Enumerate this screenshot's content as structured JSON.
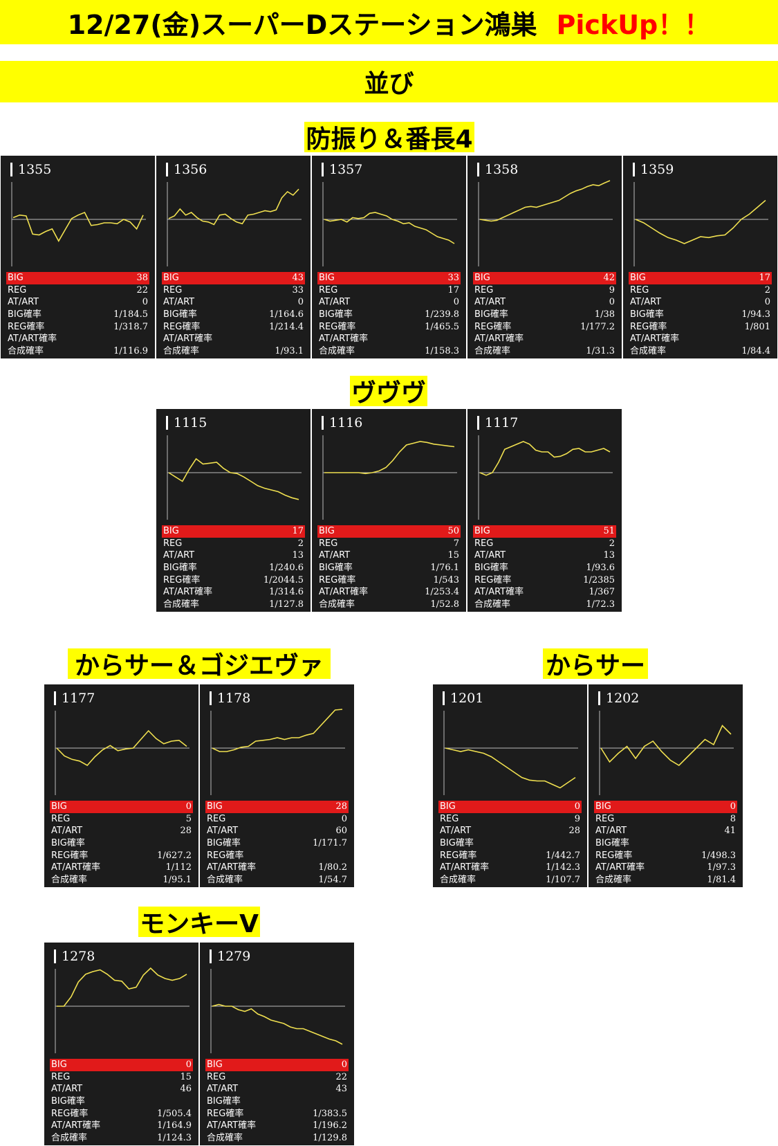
{
  "header": {
    "title": "12/27(金)スーパーDステーション鴻巣",
    "pickup": "PickUp！！",
    "subtitle": "並び"
  },
  "labels": {
    "big": "BIG",
    "reg": "REG",
    "at": "AT/ART",
    "big_rate": "BIG確率",
    "reg_rate": "REG確率",
    "at_rate": "AT/ART確率",
    "total_rate": "合成確率"
  },
  "colors": {
    "banner": "#ffff00",
    "title_accent": "#ff0000",
    "panel": "#1c1c1c",
    "graph_line": "#f0e050",
    "big_row": "#e11a1a"
  },
  "groups": [
    {
      "title": "防振り＆番長4",
      "machines": [
        {
          "number": "1355",
          "big": "38",
          "reg": "22",
          "at": "0",
          "big_rate": "1/184.5",
          "reg_rate": "1/318.7",
          "at_rate": "",
          "total_rate": "1/116.9"
        },
        {
          "number": "1356",
          "big": "43",
          "reg": "33",
          "at": "0",
          "big_rate": "1/164.6",
          "reg_rate": "1/214.4",
          "at_rate": "",
          "total_rate": "1/93.1"
        },
        {
          "number": "1357",
          "big": "33",
          "reg": "17",
          "at": "0",
          "big_rate": "1/239.8",
          "reg_rate": "1/465.5",
          "at_rate": "",
          "total_rate": "1/158.3"
        },
        {
          "number": "1358",
          "big": "42",
          "reg": "9",
          "at": "0",
          "big_rate": "1/38",
          "reg_rate": "1/177.2",
          "at_rate": "",
          "total_rate": "1/31.3"
        },
        {
          "number": "1359",
          "big": "17",
          "reg": "2",
          "at": "0",
          "big_rate": "1/94.3",
          "reg_rate": "1/801",
          "at_rate": "",
          "total_rate": "1/84.4"
        }
      ]
    },
    {
      "title": "ヴヴヴ",
      "machines": [
        {
          "number": "1115",
          "big": "17",
          "reg": "2",
          "at": "13",
          "big_rate": "1/240.6",
          "reg_rate": "1/2044.5",
          "at_rate": "1/314.6",
          "total_rate": "1/127.8"
        },
        {
          "number": "1116",
          "big": "50",
          "reg": "7",
          "at": "15",
          "big_rate": "1/76.1",
          "reg_rate": "1/543",
          "at_rate": "1/253.4",
          "total_rate": "1/52.8"
        },
        {
          "number": "1117",
          "big": "51",
          "reg": "2",
          "at": "13",
          "big_rate": "1/93.6",
          "reg_rate": "1/2385",
          "at_rate": "1/367",
          "total_rate": "1/72.3"
        }
      ]
    },
    {
      "title": "からサー＆ゴジエヴァ",
      "machines": [
        {
          "number": "1177",
          "big": "0",
          "reg": "5",
          "at": "28",
          "big_rate": "",
          "reg_rate": "1/627.2",
          "at_rate": "1/112",
          "total_rate": "1/95.1"
        },
        {
          "number": "1178",
          "big": "28",
          "reg": "0",
          "at": "60",
          "big_rate": "1/171.7",
          "reg_rate": "",
          "at_rate": "1/80.2",
          "total_rate": "1/54.7"
        }
      ]
    },
    {
      "title": "からサー",
      "machines": [
        {
          "number": "1201",
          "big": "0",
          "reg": "9",
          "at": "28",
          "big_rate": "",
          "reg_rate": "1/442.7",
          "at_rate": "1/142.3",
          "total_rate": "1/107.7"
        },
        {
          "number": "1202",
          "big": "0",
          "reg": "8",
          "at": "41",
          "big_rate": "",
          "reg_rate": "1/498.3",
          "at_rate": "1/97.3",
          "total_rate": "1/81.4"
        }
      ]
    },
    {
      "title": "モンキーV",
      "machines": [
        {
          "number": "1278",
          "big": "0",
          "reg": "15",
          "at": "46",
          "big_rate": "",
          "reg_rate": "1/505.4",
          "at_rate": "1/164.9",
          "total_rate": "1/124.3"
        },
        {
          "number": "1279",
          "big": "0",
          "reg": "22",
          "at": "43",
          "big_rate": "",
          "reg_rate": "1/383.5",
          "at_rate": "1/196.2",
          "total_rate": "1/129.8"
        }
      ]
    }
  ],
  "chart_data": [
    {
      "type": "line",
      "title": "1355",
      "values": [
        2,
        5,
        4,
        -17,
        -18,
        -14,
        -11,
        -25,
        -12,
        1,
        5,
        8,
        -7,
        -6,
        -4,
        -4,
        -5,
        0,
        -3,
        -11,
        5
      ]
    },
    {
      "type": "line",
      "title": "1356",
      "values": [
        1,
        4,
        12,
        5,
        8,
        2,
        -2,
        -3,
        -6,
        5,
        6,
        1,
        -3,
        -5,
        5,
        6,
        8,
        10,
        9,
        11,
        25,
        32,
        28,
        35
      ]
    },
    {
      "type": "line",
      "title": "1357",
      "values": [
        0,
        -2,
        -1,
        0,
        -3,
        2,
        1,
        2,
        7,
        8,
        6,
        4,
        0,
        -2,
        -5,
        -4,
        -8,
        -10,
        -12,
        -16,
        -20,
        -22,
        -24,
        -28
      ]
    },
    {
      "type": "line",
      "title": "1358",
      "values": [
        0,
        -1,
        -2,
        -1,
        2,
        5,
        8,
        11,
        14,
        15,
        14,
        16,
        18,
        20,
        22,
        26,
        30,
        33,
        35,
        38,
        40,
        39,
        42,
        45
      ]
    },
    {
      "type": "line",
      "title": "1359",
      "values": [
        0,
        -4,
        -10,
        -16,
        -21,
        -24,
        -28,
        -24,
        -20,
        -21,
        -19,
        -18,
        -10,
        0,
        6,
        14,
        22
      ]
    },
    {
      "type": "line",
      "title": "1115",
      "values": [
        0,
        -5,
        -10,
        4,
        16,
        10,
        11,
        12,
        5,
        0,
        -1,
        -5,
        -10,
        -15,
        -18,
        -20,
        -22,
        -26,
        -29,
        -31
      ]
    },
    {
      "type": "line",
      "title": "1116",
      "values": [
        0,
        0,
        0,
        0,
        0,
        0,
        -1,
        0,
        2,
        6,
        14,
        24,
        32,
        34,
        36,
        35,
        33,
        32,
        31,
        30
      ]
    },
    {
      "type": "line",
      "title": "1117",
      "values": [
        0,
        -3,
        0,
        12,
        27,
        30,
        33,
        36,
        33,
        26,
        24,
        24,
        18,
        19,
        22,
        27,
        28,
        24,
        24,
        26,
        28,
        24
      ]
    },
    {
      "type": "line",
      "title": "1177",
      "values": [
        0,
        -9,
        -13,
        -15,
        -20,
        -10,
        -2,
        3,
        -3,
        -1,
        0,
        10,
        20,
        11,
        5,
        8,
        9,
        2
      ]
    },
    {
      "type": "line",
      "title": "1178",
      "values": [
        0,
        -4,
        -4,
        -2,
        1,
        2,
        8,
        9,
        10,
        12,
        10,
        12,
        12,
        15,
        17,
        26,
        35,
        44,
        54
      ]
    },
    {
      "type": "line",
      "title": "1201",
      "values": [
        0,
        -2,
        -4,
        -2,
        -4,
        -6,
        -10,
        -16,
        -22,
        -28,
        -34,
        -37,
        -38,
        -38,
        -42,
        -46,
        -40,
        -34
      ]
    },
    {
      "type": "line",
      "title": "1202",
      "values": [
        0,
        -16,
        -6,
        2,
        -12,
        2,
        8,
        -4,
        -14,
        -20,
        -10,
        0,
        10,
        4,
        26,
        16
      ]
    },
    {
      "type": "line",
      "title": "1278",
      "values": [
        0,
        0,
        11,
        28,
        37,
        40,
        42,
        37,
        30,
        29,
        20,
        22,
        36,
        44,
        36,
        32,
        30,
        32,
        37
      ]
    },
    {
      "type": "line",
      "title": "1279",
      "values": [
        0,
        2,
        0,
        0,
        -4,
        -6,
        -3,
        -9,
        -12,
        -16,
        -18,
        -20,
        -24,
        -26,
        -26,
        -29,
        -32,
        -35,
        -38,
        -40,
        -44
      ]
    }
  ]
}
